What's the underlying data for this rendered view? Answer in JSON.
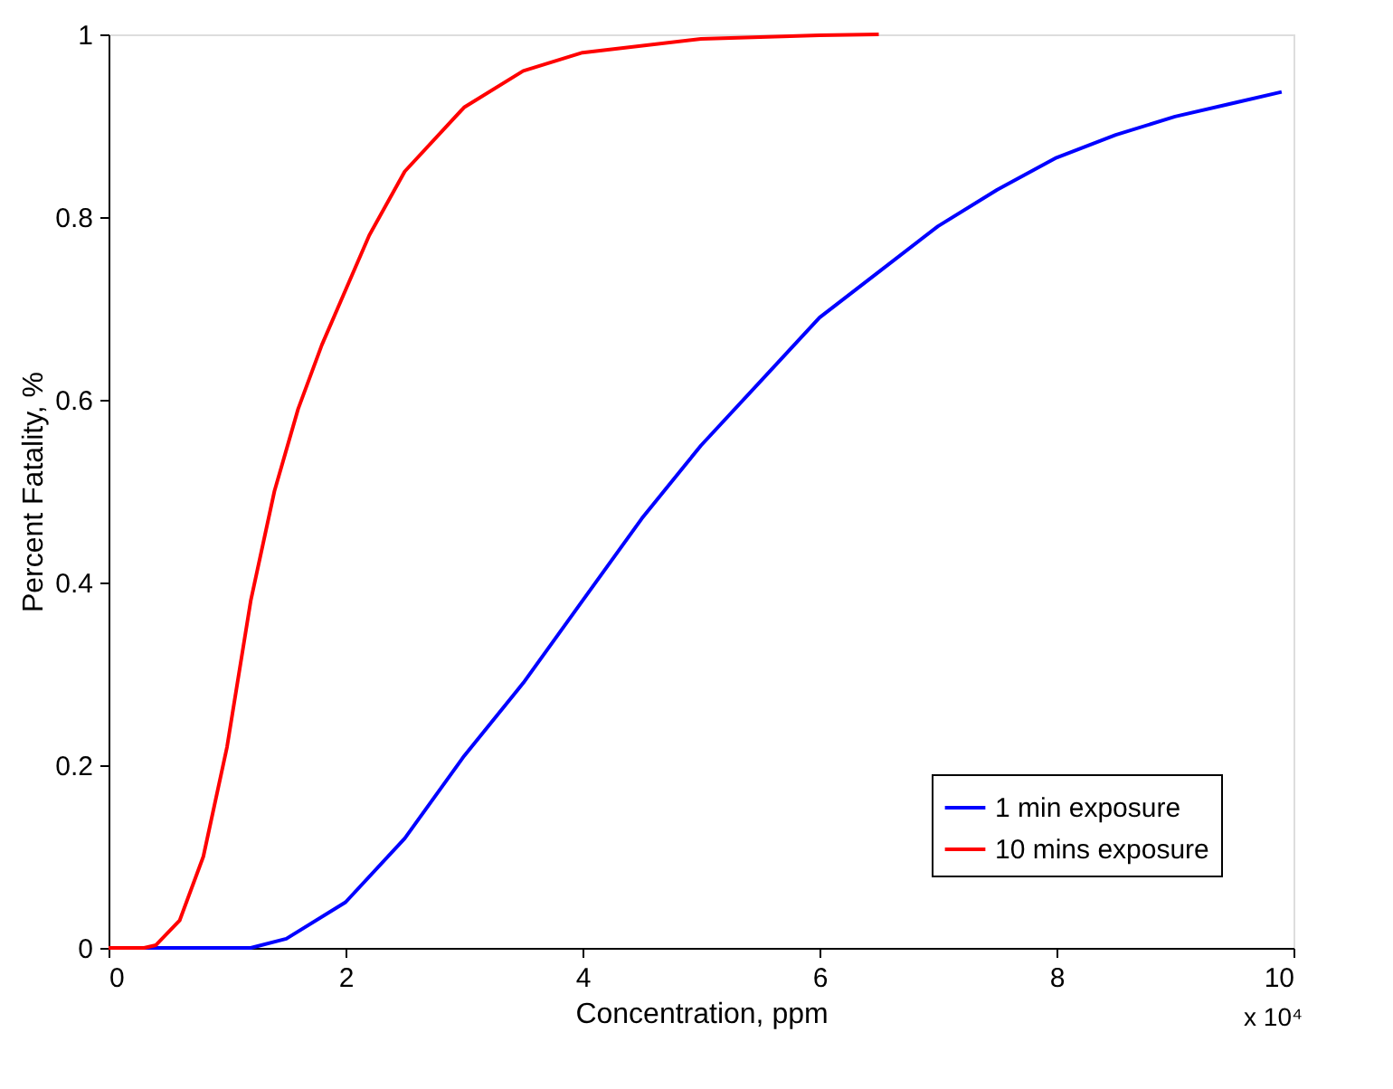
{
  "chart_data": {
    "type": "line",
    "xlabel": "Concentration, ppm",
    "ylabel": "Percent Fatality, %",
    "xlim": [
      0,
      10
    ],
    "xticks": [
      0,
      2,
      4,
      6,
      8,
      10
    ],
    "ylim": [
      0,
      1
    ],
    "yticks": [
      0,
      0.2,
      0.4,
      0.6,
      0.8,
      1
    ],
    "grid": false,
    "legend": "bottom right",
    "marker": "none",
    "line_style": "solid",
    "annotations": [
      "x 10⁴"
    ],
    "series": [
      {
        "name": "1 min exposure",
        "color": "#0000ff",
        "x": [
          0,
          1.2,
          1.5,
          2,
          2.5,
          3,
          3.5,
          4,
          4.5,
          5,
          5.5,
          6,
          6.5,
          7,
          7.5,
          8,
          8.5,
          9,
          9.5,
          9.9
        ],
        "values": [
          0,
          0,
          0.01,
          0.05,
          0.12,
          0.21,
          0.29,
          0.38,
          0.47,
          0.55,
          0.62,
          0.69,
          0.74,
          0.79,
          0.83,
          0.865,
          0.89,
          0.91,
          0.925,
          0.937
        ]
      },
      {
        "name": "10 mins exposure",
        "color": "#ff0000",
        "x": [
          0,
          0.3,
          0.4,
          0.6,
          0.8,
          1.0,
          1.2,
          1.4,
          1.6,
          1.8,
          2.0,
          2.2,
          2.5,
          3,
          3.5,
          4,
          5,
          6,
          6.5
        ],
        "values": [
          0,
          0,
          0.003,
          0.03,
          0.1,
          0.22,
          0.38,
          0.5,
          0.59,
          0.66,
          0.72,
          0.78,
          0.85,
          0.92,
          0.96,
          0.98,
          0.995,
          0.999,
          1.0
        ]
      }
    ]
  }
}
